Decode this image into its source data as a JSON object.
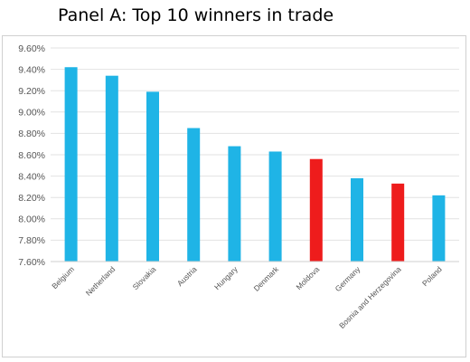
{
  "title": "Panel A: Top 10 winners in trade",
  "chart_data": {
    "type": "bar",
    "title": "Panel A: Top 10 winners in trade",
    "xlabel": "",
    "ylabel": "",
    "categories": [
      "Belgium",
      "Netherland",
      "Slovakia",
      "Austria",
      "Hungary",
      "Denmark",
      "Moldova",
      "Germany",
      "Bosnia and Herzegovina",
      "Poland"
    ],
    "values": [
      9.42,
      9.34,
      9.19,
      8.85,
      8.68,
      8.63,
      8.56,
      8.38,
      8.33,
      8.22
    ],
    "value_format": "percent-2dp",
    "ylim": [
      7.6,
      9.6
    ],
    "yticks": [
      7.6,
      7.8,
      8.0,
      8.2,
      8.4,
      8.6,
      8.8,
      9.0,
      9.2,
      9.4,
      9.6
    ],
    "ytick_labels": [
      "7.60%",
      "7.80%",
      "8.00%",
      "8.20%",
      "8.40%",
      "8.60%",
      "8.80%",
      "9.00%",
      "9.20%",
      "9.40%",
      "9.60%"
    ],
    "grid": true,
    "legend": "none",
    "bar_colors": [
      "#1fb4e6",
      "#1fb4e6",
      "#1fb4e6",
      "#1fb4e6",
      "#1fb4e6",
      "#1fb4e6",
      "#ee1c1c",
      "#1fb4e6",
      "#ee1c1c",
      "#1fb4e6"
    ],
    "colors": {
      "default_bar": "#1fb4e6",
      "highlight_bar": "#ee1c1c",
      "gridline": "#e2e2e2",
      "axis": "#cfcfcf",
      "tick_text": "#555555"
    }
  }
}
